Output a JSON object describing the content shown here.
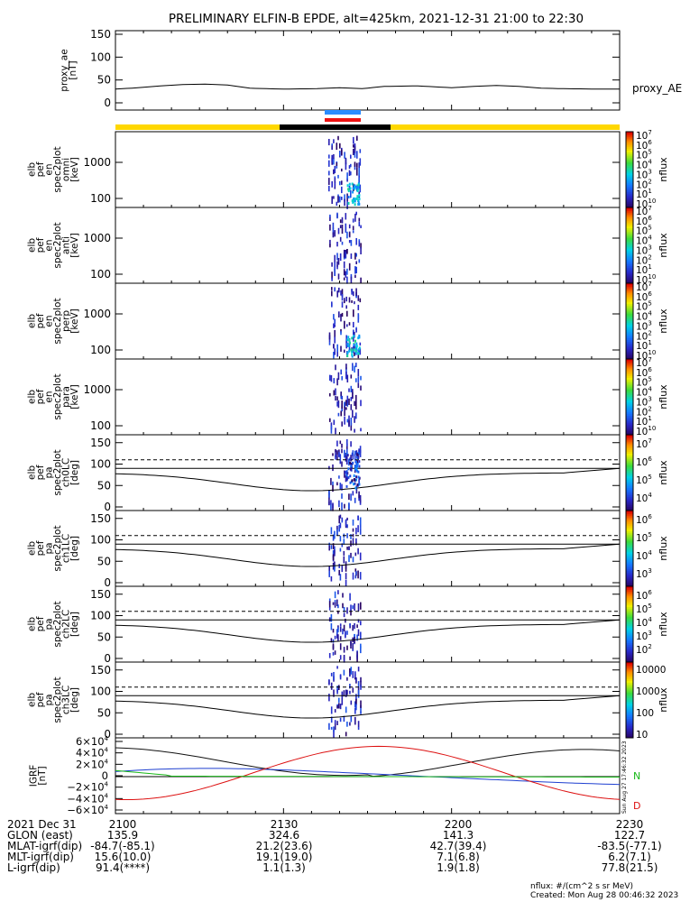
{
  "title": "PRELIMINARY ELFIN-B EPDE, alt=425km, 2021-12-31 21:00 to 22:30",
  "colors": {
    "yellow": "#ffd700",
    "black": "#000000",
    "blue_bar": "#2a8cff",
    "red_bar": "#ee1111",
    "bx": "#111111",
    "by": "#1e3fd0",
    "bz": "#dd1111",
    "bmag": "#18b818"
  },
  "proxy_ae": {
    "ylabel": [
      "proxy_ae",
      "[nT]"
    ],
    "yticks": [
      "150",
      "100",
      "50",
      "0"
    ],
    "legend": "proxy_AE",
    "chart_data": {
      "type": "line",
      "ylim": [
        0,
        160
      ],
      "x": [
        0,
        4,
        8,
        12,
        16,
        20,
        24,
        30,
        36,
        40,
        44,
        48,
        54,
        60,
        64,
        68,
        72,
        76,
        80,
        86,
        90
      ],
      "values": [
        30,
        33,
        37,
        40,
        41,
        39,
        32,
        30,
        31,
        33,
        31,
        36,
        37,
        33,
        36,
        38,
        36,
        32,
        31,
        30,
        30
      ]
    }
  },
  "spec_panels": [
    {
      "ylabel": [
        "elb",
        "pef",
        "en",
        "spec2plot",
        "omni",
        "[keV]"
      ],
      "yticks": [
        "1000",
        "100"
      ],
      "cb": "n7"
    },
    {
      "ylabel": [
        "elb",
        "pef",
        "en",
        "spec2plot",
        "anti",
        "[keV]"
      ],
      "yticks": [
        "1000",
        "100"
      ],
      "cb": "n7"
    },
    {
      "ylabel": [
        "elb",
        "pef",
        "en",
        "spec2plot",
        "perp",
        "[keV]"
      ],
      "yticks": [
        "1000",
        "100"
      ],
      "cb": "n7"
    },
    {
      "ylabel": [
        "elb",
        "pef",
        "en",
        "spec2plot",
        "para",
        "[keV]"
      ],
      "yticks": [
        "1000",
        "100"
      ],
      "cb": "n7"
    },
    {
      "ylabel": [
        "elb",
        "pef",
        "pa",
        "spec2plot",
        "ch0LC",
        "[deg]"
      ],
      "yticks": [
        "150",
        "100",
        "50",
        "0"
      ],
      "cb": "n4_7"
    },
    {
      "ylabel": [
        "elb",
        "pef",
        "pa",
        "spec2plot",
        "ch1LC",
        "[deg]"
      ],
      "yticks": [
        "150",
        "100",
        "50",
        "0"
      ],
      "cb": "n3_6"
    },
    {
      "ylabel": [
        "elb",
        "pef",
        "pa",
        "spec2plot",
        "ch2LC",
        "[deg]"
      ],
      "yticks": [
        "150",
        "100",
        "50",
        "0"
      ],
      "cb": "n2_6"
    },
    {
      "ylabel": [
        "elb",
        "pef",
        "pa",
        "spec2plot",
        "ch3LC",
        "[deg]"
      ],
      "yticks": [
        "150",
        "100",
        "50",
        "0"
      ],
      "cb": "lin"
    }
  ],
  "colorbars": {
    "unit_label": "nflux",
    "n7": [
      "10",
      "1",
      "2",
      "3",
      "4",
      "5",
      "6",
      "7"
    ],
    "n4_7": [
      "4",
      "5",
      "6",
      "7"
    ],
    "n3_6": [
      "3",
      "4",
      "5",
      "6"
    ],
    "n2_6": [
      "2",
      "3",
      "4",
      "5",
      "6"
    ],
    "lin": [
      "10000",
      "1000",
      "100",
      "10"
    ],
    "base": "10"
  },
  "grf": {
    "ylabel": [
      "IGRF",
      "[nT]"
    ],
    "yticks": [
      {
        "m": "6",
        "s": "10",
        "e": "4",
        "sign": ""
      },
      {
        "m": "4",
        "s": "10",
        "e": "4",
        "sign": ""
      },
      {
        "m": "2",
        "s": "10",
        "e": "4",
        "sign": ""
      },
      {
        "m": "0",
        "s": "",
        "e": "",
        "sign": ""
      },
      {
        "m": "2",
        "s": "10",
        "e": "4",
        "sign": "−"
      },
      {
        "m": "4",
        "s": "10",
        "e": "4",
        "sign": "−"
      },
      {
        "m": "6",
        "s": "10",
        "e": "4",
        "sign": "−"
      }
    ],
    "labels": {
      "n": "N",
      "d": "D"
    },
    "stamp": "Sun Aug 27 17:46:32 2023"
  },
  "footer": {
    "rows": [
      [
        "2021 Dec 31",
        "2100",
        "2130",
        "2200",
        "2230"
      ],
      [
        "GLON (east)",
        "135.9",
        "324.6",
        "141.3",
        "122.7"
      ],
      [
        "MLAT-igrf(dip)",
        "-84.7(-85.1)",
        "21.2(23.6)",
        "42.7(39.4)",
        "-83.5(-77.1)"
      ],
      [
        "MLT-igrf(dip)",
        "15.6(10.0)",
        "19.1(19.0)",
        "7.1(6.8)",
        "6.2(7.1)"
      ],
      [
        "L-igrf(dip)",
        "91.4(****)",
        "1.1(1.3)",
        "1.9(1.8)",
        "77.8(21.5)"
      ]
    ],
    "units": "nflux: #/(cm^2 s sr MeV)",
    "created": "Created: Mon Aug 28 00:46:32 2023"
  }
}
